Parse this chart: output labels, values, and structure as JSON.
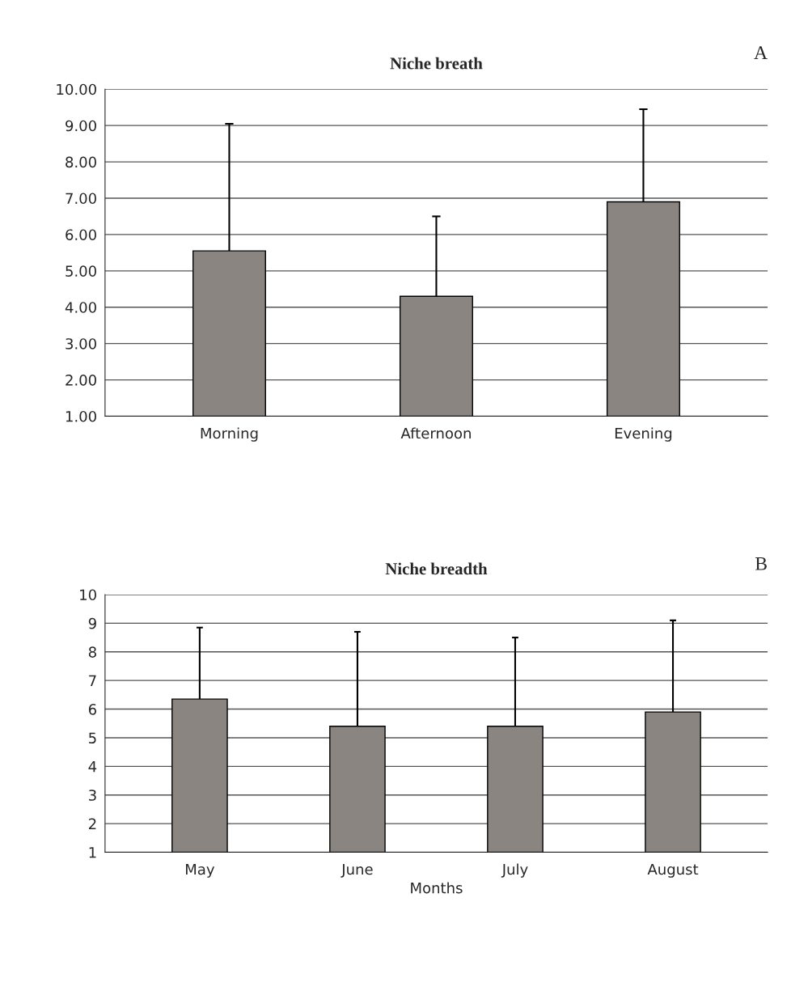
{
  "chart_data": [
    {
      "type": "bar",
      "title": "Niche breath",
      "annotations": [
        "A"
      ],
      "categories": [
        "Morning",
        "Afternoon",
        "Evening"
      ],
      "values": [
        5.55,
        4.3,
        6.9
      ],
      "errors": [
        [
          5.55,
          9.05
        ],
        [
          4.3,
          6.5
        ],
        [
          6.9,
          9.45
        ]
      ],
      "color": "#8a8580",
      "ylim": [
        1,
        10
      ],
      "yticks": [
        {
          "value": 1,
          "label": "1.00"
        },
        {
          "value": 2,
          "label": "2.00"
        },
        {
          "value": 3,
          "label": "3.00"
        },
        {
          "value": 4,
          "label": "4.00"
        },
        {
          "value": 5,
          "label": "5.00"
        },
        {
          "value": 6,
          "label": "6.00"
        },
        {
          "value": 7,
          "label": "7.00"
        },
        {
          "value": 8,
          "label": "8.00"
        },
        {
          "value": 9,
          "label": "9.00"
        },
        {
          "value": 10,
          "label": "10.00"
        }
      ],
      "grid": "y"
    },
    {
      "type": "bar",
      "title": "Niche breadth",
      "xlabel": "Months",
      "annotations": [
        "B"
      ],
      "categories": [
        "May",
        "June",
        "July",
        "August"
      ],
      "values": [
        6.35,
        5.4,
        5.4,
        5.9
      ],
      "errors": [
        [
          6.35,
          8.85
        ],
        [
          5.4,
          8.7
        ],
        [
          5.4,
          8.5
        ],
        [
          5.9,
          9.1
        ]
      ],
      "color": "#8a8580",
      "ylim": [
        1,
        10
      ],
      "yticks": [
        1,
        2,
        3,
        4,
        5,
        6,
        7,
        8,
        9,
        10
      ],
      "grid": "y"
    }
  ]
}
